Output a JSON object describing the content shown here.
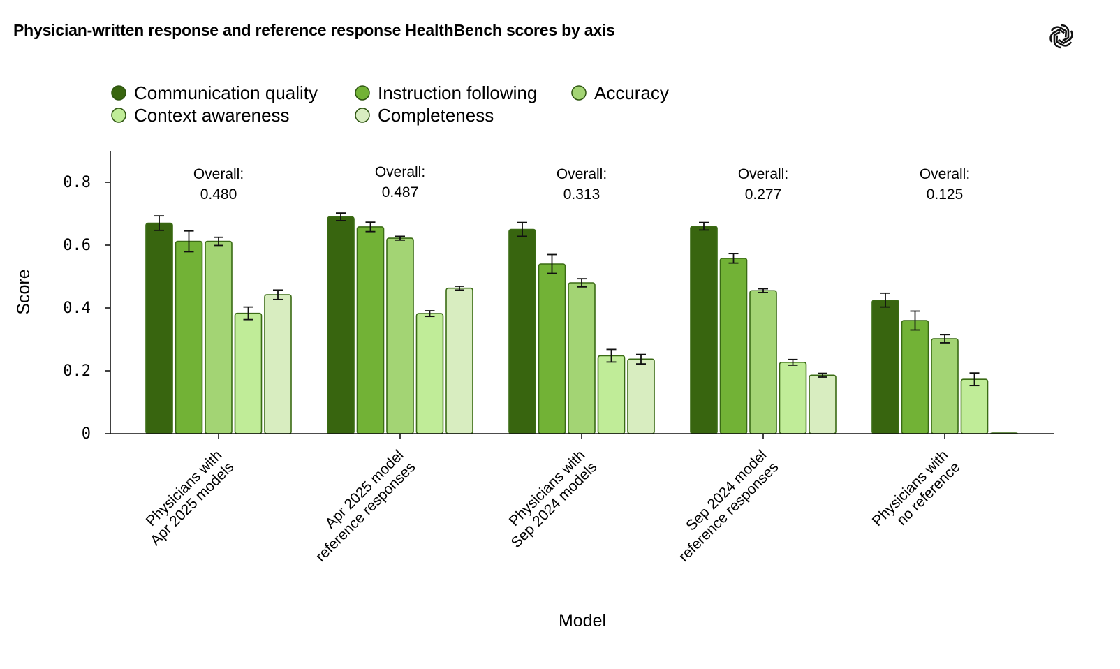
{
  "header": {
    "title": "Physician-written response and reference response HealthBench scores by axis",
    "logo_icon": "openai-logo-icon"
  },
  "chart_data": {
    "type": "bar",
    "xlabel": "Model",
    "ylabel": "Score",
    "ylim": [
      0,
      0.9
    ],
    "yticks": [
      0,
      0.2,
      0.4,
      0.6,
      0.8
    ],
    "ytick_labels": [
      "0",
      "0.2",
      "0.4",
      "0.6",
      "0.8"
    ],
    "grid": false,
    "legend_position": "top-left",
    "categories": [
      [
        "Physicians with",
        "Apr 2025 models"
      ],
      [
        "Apr 2025 model",
        "reference responses"
      ],
      [
        "Physicians with",
        "Sep 2024 models"
      ],
      [
        "Sep 2024 model",
        "reference responses"
      ],
      [
        "Physicians with",
        "no reference"
      ]
    ],
    "overall_label": "Overall:",
    "overall": [
      "0.480",
      "0.487",
      "0.313",
      "0.277",
      "0.125"
    ],
    "series": [
      {
        "name": "Communication quality",
        "color": "#38650f",
        "values": [
          0.67,
          0.69,
          0.65,
          0.66,
          0.425
        ],
        "errors": [
          0.023,
          0.012,
          0.022,
          0.012,
          0.022
        ]
      },
      {
        "name": "Instruction following",
        "color": "#72b236",
        "values": [
          0.612,
          0.658,
          0.54,
          0.558,
          0.36
        ],
        "errors": [
          0.033,
          0.015,
          0.03,
          0.015,
          0.03
        ]
      },
      {
        "name": "Accuracy",
        "color": "#a3d474",
        "values": [
          0.612,
          0.622,
          0.48,
          0.455,
          0.302
        ],
        "errors": [
          0.013,
          0.006,
          0.013,
          0.006,
          0.013
        ]
      },
      {
        "name": "Context awareness",
        "color": "#c0ec98",
        "values": [
          0.383,
          0.382,
          0.248,
          0.227,
          0.173
        ],
        "errors": [
          0.02,
          0.009,
          0.02,
          0.009,
          0.02
        ]
      },
      {
        "name": "Completeness",
        "color": "#d8edc0",
        "values": [
          0.442,
          0.463,
          0.237,
          0.186,
          0.0
        ],
        "errors": [
          0.015,
          0.006,
          0.015,
          0.006,
          0.0
        ]
      }
    ]
  }
}
